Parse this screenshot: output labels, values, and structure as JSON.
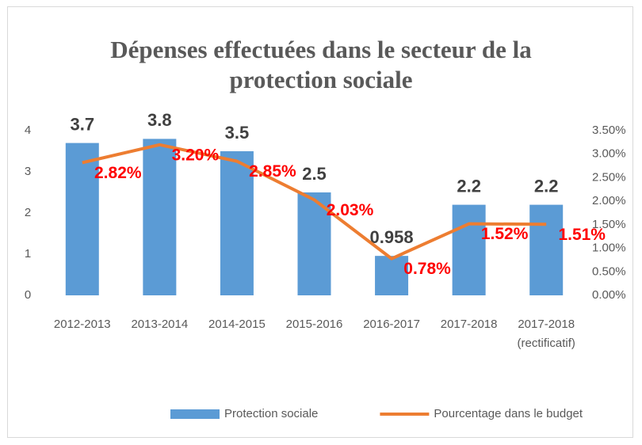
{
  "chart_data": {
    "type": "bar+line",
    "title": "Dépenses effectuées dans le secteur de la protection sociale",
    "categories": [
      "2012-2013",
      "2013-2014",
      "2014-2015",
      "2015-2016",
      "2016-2017",
      "2017-2018",
      "2017-2018 (rectificatif)"
    ],
    "series": [
      {
        "name": "Protection sociale",
        "type": "bar",
        "color": "#5b9bd5",
        "values": [
          3.7,
          3.8,
          3.5,
          2.5,
          0.958,
          2.2,
          2.2
        ]
      },
      {
        "name": "Pourcentage dans le budget",
        "type": "line",
        "axis": "y2",
        "color": "#ed7d31",
        "values": [
          2.82,
          3.2,
          2.85,
          2.03,
          0.78,
          1.52,
          1.51
        ],
        "value_labels": [
          "2.82%",
          "3.20%",
          "2.85%",
          "2.03%",
          "0.78%",
          "1.52%",
          "1.51%"
        ]
      }
    ],
    "ylim": [
      0,
      4
    ],
    "yticks": [
      0,
      1,
      2,
      3,
      4
    ],
    "y2lim": [
      0,
      3.5
    ],
    "y2ticks": [
      {
        "value": 0,
        "label": "0.00%"
      },
      {
        "value": 0.5,
        "label": "0.50%"
      },
      {
        "value": 1,
        "label": "1.00%"
      },
      {
        "value": 1.5,
        "label": "1.50%"
      },
      {
        "value": 2,
        "label": "2.00%"
      },
      {
        "value": 2.5,
        "label": "2.50%"
      },
      {
        "value": 3,
        "label": "3.00%"
      },
      {
        "value": 3.5,
        "label": "3.50%"
      }
    ],
    "legend": "bottom"
  }
}
